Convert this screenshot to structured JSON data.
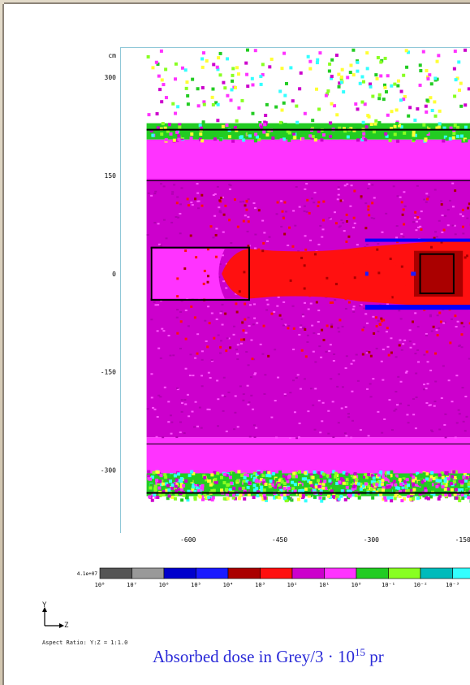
{
  "chart_data": {
    "type": "heatmap",
    "title": "",
    "unit_label": "cm",
    "xlabel": "",
    "ylabel": "",
    "x_ticks": [
      -600,
      -450,
      -300,
      -150
    ],
    "y_ticks": [
      300,
      150,
      0,
      -150,
      -300
    ],
    "xlim": [
      -710,
      -125
    ],
    "ylim": [
      -395,
      345
    ],
    "scale": "log",
    "colorbar": {
      "max_label": "4.1e+07",
      "tick_labels": [
        "10⁸",
        "10⁷",
        "10⁶",
        "10⁵",
        "10⁴",
        "10³",
        "10²",
        "10¹",
        "10⁰",
        "10⁻¹",
        "10⁻²",
        "10⁻³"
      ],
      "colors": [
        "#555555",
        "#999999",
        "#0000cc",
        "#1a1aff",
        "#aa0000",
        "#ff1010",
        "#cc00cc",
        "#ff33ff",
        "#22cc22",
        "#88ff22",
        "#00bbbb",
        "#33ffff"
      ]
    },
    "regions": [
      {
        "y_top": 345,
        "y_bottom": 230,
        "level": "empty",
        "color": "#ffffff"
      },
      {
        "y_top": 230,
        "y_bottom": 205,
        "level": "10⁻¹ to 10⁰",
        "color": "#22cc22"
      },
      {
        "y_top": 205,
        "y_bottom": 145,
        "level": "10⁰",
        "color": "#ff33ff"
      },
      {
        "y_top": 145,
        "y_bottom": -250,
        "level": "10¹",
        "color": "#cc00cc"
      },
      {
        "y_top": -250,
        "y_bottom": -305,
        "level": "10⁰",
        "color": "#ff33ff"
      },
      {
        "y_top": -305,
        "y_bottom": -340,
        "level": "10⁻¹ to 10⁰",
        "color": "#22cc22"
      },
      {
        "y_top": -340,
        "y_bottom": -395,
        "level": "empty",
        "color": "#ffffff"
      }
    ],
    "boundaries_y": [
      220,
      142,
      -260,
      -335
    ],
    "boxes": [
      {
        "x0": -660,
        "x1": -500,
        "y0": -40,
        "y1": 40
      },
      {
        "x0": -220,
        "x1": -165,
        "y0": -30,
        "y1": 30
      }
    ],
    "hot_core": {
      "x_start": -520,
      "level": "10³",
      "color": "#ff1010"
    },
    "beam_plates": {
      "x_start": -310,
      "y_upper": 50,
      "y_lower": -50,
      "color": "#0000ff"
    },
    "grid": false
  },
  "labels": {
    "axis_y": "Y",
    "axis_z": "Z",
    "aspect_ratio": "Aspect Ratio: Y:Z = 1:1.0"
  },
  "caption": {
    "text": "Absorbed dose in Grey/3 · 10",
    "exponent": "15",
    "suffix": " pr"
  }
}
